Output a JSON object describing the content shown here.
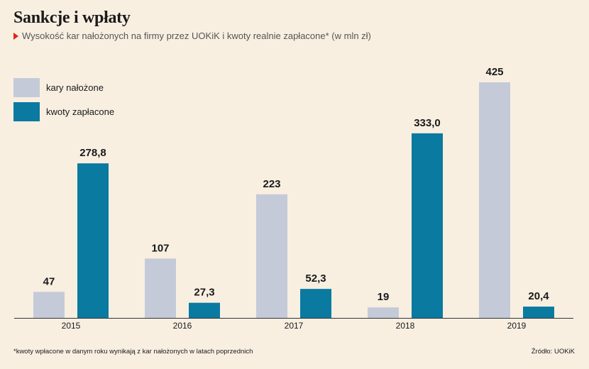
{
  "title": "Sankcje i wpłaty",
  "subtitle": "Wysokość kar nałożonych na firmy przez UOKiK i kwoty realnie zapłacone* (w mln zł)",
  "footnote": "*kwoty wpłacone w danym roku wynikają z kar nałożonych w latach poprzednich",
  "source": "Źródło: UOKiK",
  "colors": {
    "background": "#f8efe1",
    "kary": "#c5cad8",
    "kwoty": "#0a7aa0",
    "accent": "#e2231a"
  },
  "chart_data": {
    "type": "bar",
    "categories": [
      "2015",
      "2016",
      "2017",
      "2018",
      "2019"
    ],
    "series": [
      {
        "name": "kary nałożone",
        "values": [
          47,
          107,
          223,
          19,
          425
        ],
        "labels": [
          "47",
          "107",
          "223",
          "19",
          "425"
        ]
      },
      {
        "name": "kwoty zapłacone",
        "values": [
          278.8,
          27.3,
          52.3,
          333.0,
          20.4
        ],
        "labels": [
          "278,8",
          "27,3",
          "52,3",
          "333,0",
          "20,4"
        ]
      }
    ],
    "ylim": [
      0,
      425
    ],
    "grid": false,
    "legend": "top-left"
  }
}
